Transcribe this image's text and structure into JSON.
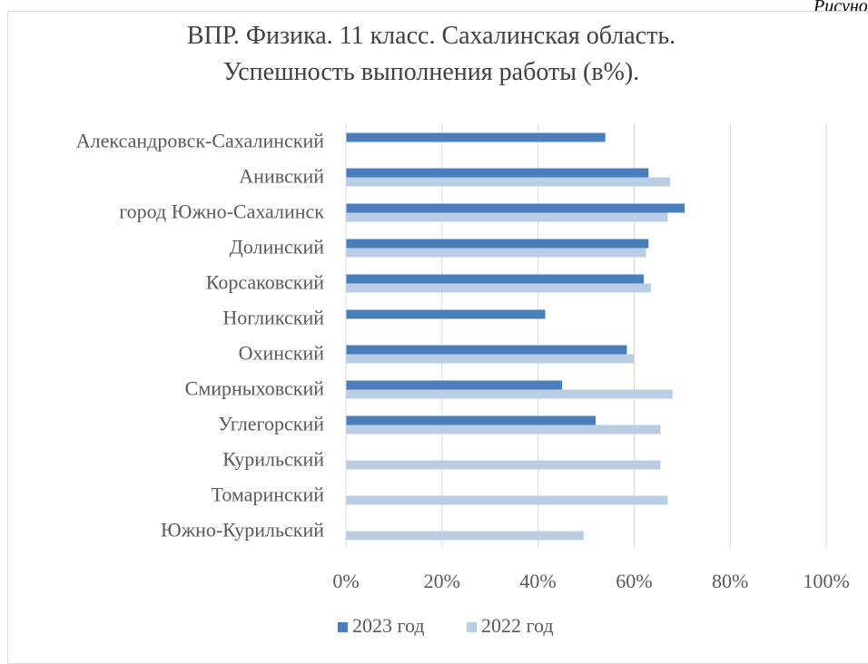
{
  "corner_text": "Рисунок",
  "chart_data": {
    "type": "bar",
    "orientation": "horizontal",
    "title": "ВПР. Физика. 11 класс. Сахалинская область.",
    "subtitle": "Успешность выполнения работы (в%).",
    "categories": [
      "Александровск-Сахалинский",
      "Анивский",
      "город Южно-Сахалинск",
      "Долинский",
      "Корсаковский",
      "Ногликский",
      "Охинский",
      "Смирныховский",
      "Углегорский",
      "Курильский",
      "Томаринский",
      "Южно-Курильский"
    ],
    "series": [
      {
        "name": "2023 год",
        "color": "#4a7ebb",
        "values": [
          54,
          63,
          70.5,
          63,
          62,
          41.5,
          58.5,
          45,
          52,
          null,
          null,
          null
        ]
      },
      {
        "name": "2022 год",
        "color": "#b9cde5",
        "values": [
          null,
          67.5,
          67,
          62.5,
          63.5,
          null,
          60,
          68,
          65.5,
          65.5,
          67,
          49.5
        ]
      }
    ],
    "xlim": [
      0,
      100
    ],
    "xticks": [
      "0%",
      "20%",
      "40%",
      "60%",
      "80%",
      "100%"
    ],
    "grid": true,
    "legend_position": "bottom"
  }
}
